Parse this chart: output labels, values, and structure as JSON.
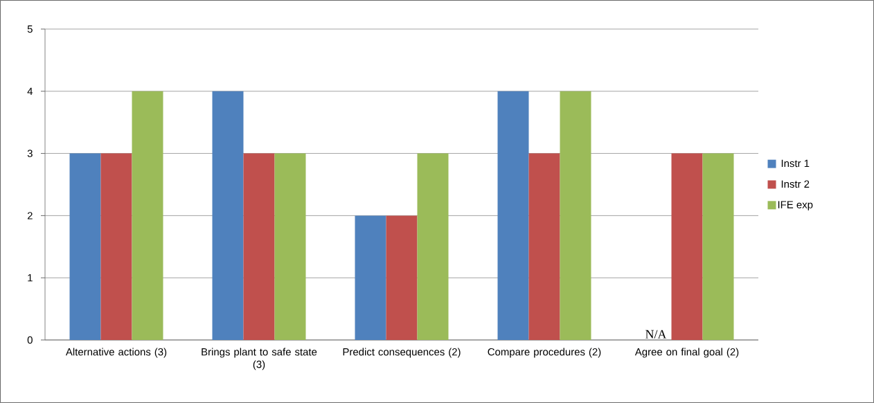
{
  "chart_data": {
    "type": "bar",
    "categories": [
      "Alternative actions (3)",
      "Brings plant to safe state (3)",
      "Predict consequences (2)",
      "Compare procedures (2)",
      "Agree on final goal (2)"
    ],
    "series": [
      {
        "name": "Instr 1",
        "color": "#4f81bd",
        "values": [
          3,
          4,
          2,
          4,
          null
        ]
      },
      {
        "name": "Instr 2",
        "color": "#c0504d",
        "values": [
          3,
          3,
          2,
          3,
          3
        ]
      },
      {
        "name": "IFE exp",
        "color": "#9bbb59",
        "values": [
          4,
          3,
          3,
          4,
          3
        ]
      }
    ],
    "ylim": [
      0,
      5
    ],
    "yticks": [
      0,
      1,
      2,
      3,
      4,
      5
    ],
    "grid": "y",
    "legend": "right",
    "annotations": [
      {
        "text": "N/A",
        "x": "Agree on final goal (2)",
        "y": 0
      }
    ]
  }
}
